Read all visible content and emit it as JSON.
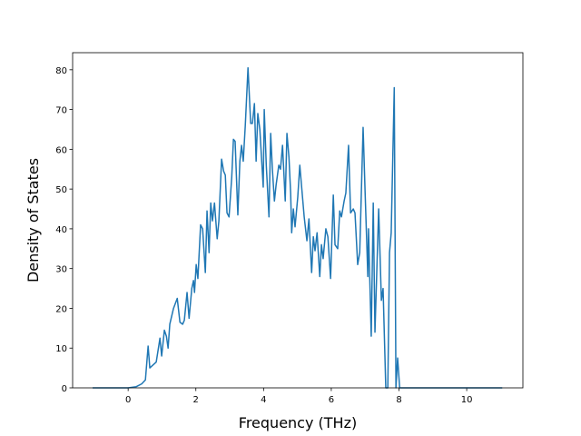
{
  "chart_data": {
    "type": "line",
    "xlabel": "Frequency (THz)",
    "ylabel": "Density of States",
    "series": [
      {
        "color": "#1f77b4",
        "x": [
          -1.05,
          0,
          0.24,
          0.4,
          0.51,
          0.59,
          0.64,
          0.83,
          0.94,
          0.99,
          1.07,
          1.13,
          1.18,
          1.23,
          1.34,
          1.45,
          1.53,
          1.61,
          1.66,
          1.74,
          1.8,
          1.88,
          1.93,
          1.96,
          2.01,
          2.06,
          2.14,
          2.2,
          2.28,
          2.33,
          2.39,
          2.44,
          2.49,
          2.55,
          2.63,
          2.68,
          2.76,
          2.82,
          2.87,
          2.92,
          2.98,
          3.06,
          3.11,
          3.16,
          3.24,
          3.3,
          3.35,
          3.4,
          3.46,
          3.54,
          3.62,
          3.67,
          3.73,
          3.78,
          3.83,
          3.89,
          3.99,
          4.02,
          4.08,
          4.16,
          4.21,
          4.26,
          4.32,
          4.37,
          4.45,
          4.5,
          4.56,
          4.64,
          4.69,
          4.75,
          4.8,
          4.83,
          4.88,
          4.93,
          5.01,
          5.07,
          5.15,
          5.2,
          5.28,
          5.34,
          5.42,
          5.47,
          5.52,
          5.58,
          5.66,
          5.71,
          5.76,
          5.84,
          5.9,
          5.98,
          6.06,
          6.11,
          6.19,
          6.25,
          6.3,
          6.38,
          6.43,
          6.51,
          6.57,
          6.65,
          6.7,
          6.78,
          6.84,
          6.94,
          7.0,
          7.08,
          7.1,
          7.18,
          7.24,
          7.29,
          7.4,
          7.48,
          7.53,
          7.61,
          7.67,
          7.72,
          7.77,
          7.86,
          7.91,
          7.96,
          8.02,
          11.05
        ],
        "values": [
          0,
          0,
          0.3,
          1,
          2,
          10.5,
          5,
          6.5,
          12.5,
          8,
          14.5,
          13,
          10,
          16,
          20,
          22.5,
          16.5,
          16,
          17,
          24,
          17.5,
          25,
          27,
          24,
          31,
          27.5,
          41,
          40,
          29,
          44.5,
          34,
          46.5,
          42,
          46.5,
          37.5,
          42,
          57.5,
          54.5,
          53.5,
          44,
          43,
          53,
          62.5,
          62,
          43.5,
          57,
          61,
          57,
          66,
          80.5,
          66.5,
          66.5,
          71.5,
          57,
          69,
          65,
          50.5,
          70,
          56,
          43,
          64,
          55,
          47,
          51,
          56,
          55,
          61,
          47,
          64,
          58,
          49,
          39,
          45,
          40.5,
          48,
          56,
          48,
          43,
          37,
          42.5,
          29,
          38,
          34.5,
          39,
          28,
          36,
          32.5,
          40,
          38,
          27.5,
          48.5,
          36,
          35,
          44.5,
          43,
          47,
          49,
          61,
          44,
          45,
          44,
          31,
          34,
          65.5,
          49,
          28,
          40,
          13,
          46.5,
          14,
          45,
          22,
          25,
          0,
          0,
          34,
          39,
          75.5,
          0,
          7.5,
          0,
          0
        ]
      }
    ],
    "xlim": [
      -1.64,
      11.66
    ],
    "ylim": [
      0,
      84.3
    ],
    "xticks": [
      0,
      2,
      4,
      6,
      8,
      10
    ],
    "yticks": [
      0,
      10,
      20,
      30,
      40,
      50,
      60,
      70,
      80
    ]
  }
}
